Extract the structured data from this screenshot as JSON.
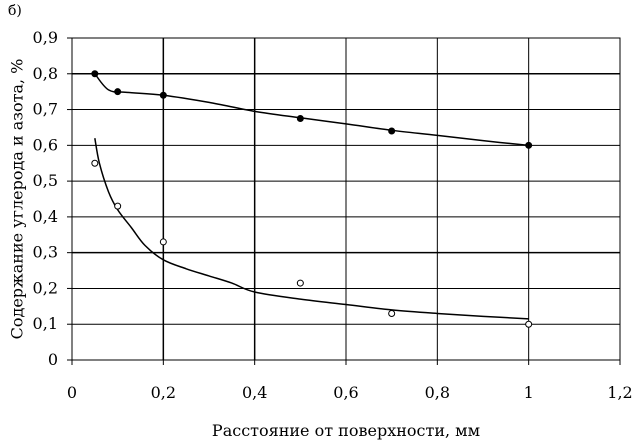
{
  "panel_label": "б)",
  "chart_data": {
    "type": "scatter",
    "xlabel": "Расстояние от  поверхности, мм",
    "ylabel": "Содержание углерода и азота, %",
    "xlim": [
      0,
      1.2
    ],
    "ylim": [
      0,
      0.9
    ],
    "x_ticks": [
      0,
      0.2,
      0.4,
      0.6,
      0.8,
      1,
      1.2
    ],
    "x_tick_labels": [
      "0",
      "0,2",
      "0,4",
      "0,6",
      "0,8",
      "1",
      "1,2"
    ],
    "y_ticks": [
      0,
      0.1,
      0.2,
      0.3,
      0.4,
      0.5,
      0.6,
      0.7,
      0.8,
      0.9
    ],
    "y_tick_labels": [
      "0",
      "0,1",
      "0,2",
      "0,3",
      "0,4",
      "0,5",
      "0,6",
      "0,7",
      "0,8",
      "0,9"
    ],
    "grid": true,
    "series": [
      {
        "marker": "filled-circle",
        "x": [
          0.05,
          0.1,
          0.2,
          0.5,
          0.7,
          1.0
        ],
        "y": [
          0.8,
          0.75,
          0.74,
          0.675,
          0.64,
          0.6
        ],
        "trend": [
          [
            0.05,
            0.8
          ],
          [
            0.08,
            0.755
          ],
          [
            0.12,
            0.748
          ],
          [
            0.2,
            0.74
          ],
          [
            0.3,
            0.72
          ],
          [
            0.4,
            0.695
          ],
          [
            0.5,
            0.677
          ],
          [
            0.6,
            0.66
          ],
          [
            0.7,
            0.642
          ],
          [
            0.8,
            0.628
          ],
          [
            0.9,
            0.613
          ],
          [
            1.0,
            0.6
          ]
        ]
      },
      {
        "marker": "open-circle",
        "x": [
          0.05,
          0.1,
          0.2,
          0.5,
          0.7,
          1.0
        ],
        "y": [
          0.55,
          0.43,
          0.33,
          0.215,
          0.13,
          0.1
        ],
        "trend": [
          [
            0.05,
            0.62
          ],
          [
            0.06,
            0.55
          ],
          [
            0.08,
            0.47
          ],
          [
            0.1,
            0.42
          ],
          [
            0.13,
            0.37
          ],
          [
            0.16,
            0.32
          ],
          [
            0.2,
            0.28
          ],
          [
            0.25,
            0.255
          ],
          [
            0.3,
            0.235
          ],
          [
            0.35,
            0.215
          ],
          [
            0.4,
            0.19
          ],
          [
            0.5,
            0.17
          ],
          [
            0.6,
            0.155
          ],
          [
            0.7,
            0.14
          ],
          [
            0.8,
            0.13
          ],
          [
            0.9,
            0.122
          ],
          [
            1.0,
            0.115
          ]
        ]
      }
    ]
  }
}
